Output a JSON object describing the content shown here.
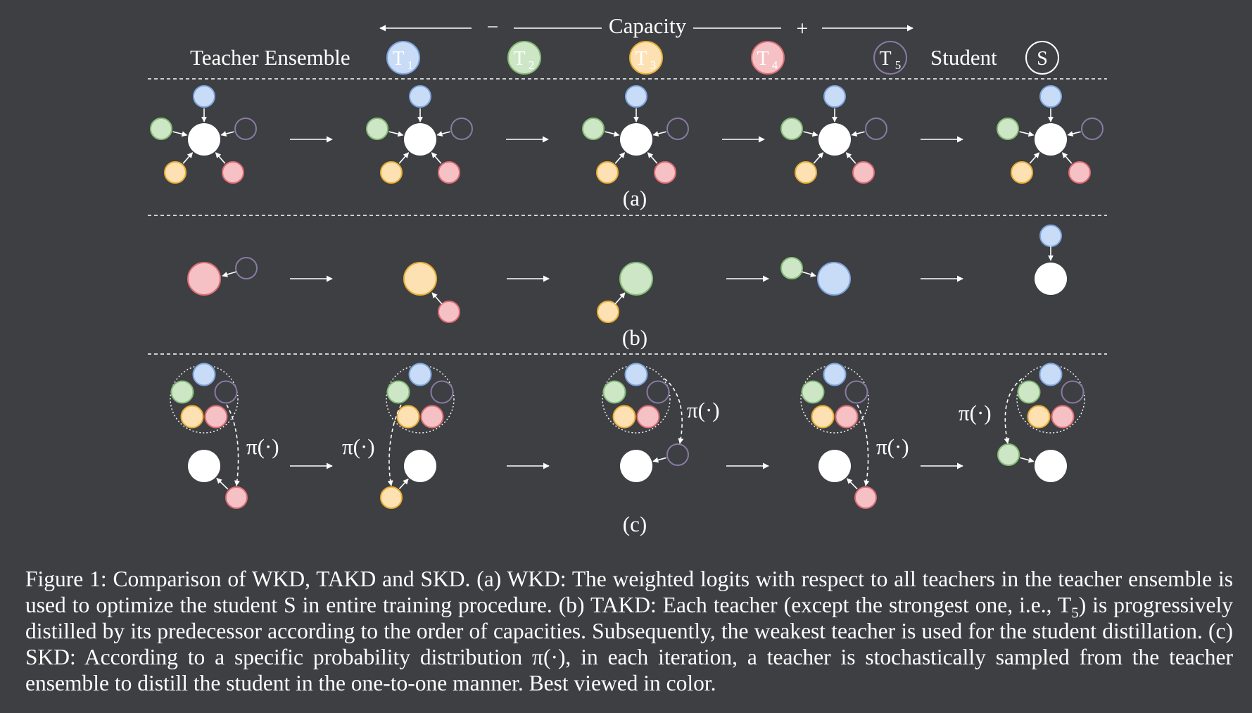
{
  "colors": {
    "background": "#3d3f42",
    "T1": "#c9dcf7",
    "T1_stroke": "#7fa5de",
    "T2": "#cde7c6",
    "T2_stroke": "#86bb78",
    "T3": "#fde1b3",
    "T3_stroke": "#e8ae34",
    "T4": "#f6c1c4",
    "T4_stroke": "#dc6d75",
    "T5": "#3d3f42",
    "T5_stroke": "#8a7aa4",
    "student": "#ffffff"
  },
  "header": {
    "capacity_label": "Capacity",
    "minus_sign": "−",
    "plus_sign": "+",
    "teacher_ensemble_label": "Teacher Ensemble",
    "teachers": [
      {
        "letter": "T",
        "index": "1"
      },
      {
        "letter": "T",
        "index": "2"
      },
      {
        "letter": "T",
        "index": "3"
      },
      {
        "letter": "T",
        "index": "4"
      },
      {
        "letter": "T",
        "index": "5"
      }
    ],
    "student_label": "Student",
    "student_symbol": "S"
  },
  "panels": {
    "a_label": "(a)",
    "b_label": "(b)",
    "c_label": "(c)",
    "pi_label": "π(·)"
  },
  "caption": {
    "part1": "Figure 1: Comparison of WKD, TAKD and SKD. (a) WKD: The weighted logits with respect to all teachers in the teacher ensemble is used to optimize the student S in entire training procedure. (b) TAKD: Each teacher (except the strongest one, i.e., T",
    "sub": "5",
    "part2": ") is progressively distilled by its predecessor according to the order of capacities. Subsequently, the weakest teacher is used for the student distillation. (c) SKD: According to a specific probability distribution π(·), in each iteration, a teacher is stochastically sampled from the teacher ensemble to distill the student in the one-to-one manner. Best viewed in color."
  }
}
